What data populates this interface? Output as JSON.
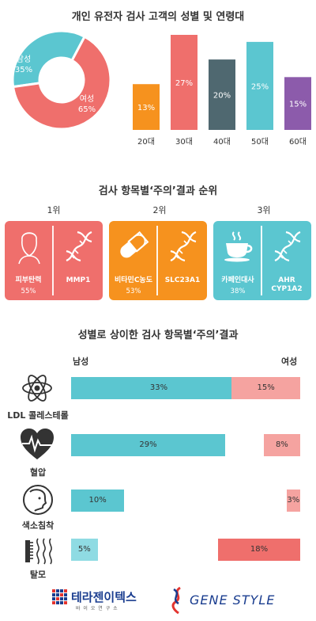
{
  "header": {
    "title": "개인 유전자 검사 고객의 성별 및 연령대"
  },
  "colors": {
    "male": "#5bc6d0",
    "female": "#ef6f6c",
    "orange": "#f6921e",
    "dark": "#4f6870",
    "purple": "#8c5bab",
    "male_light": "#8fdbe3",
    "female_light": "#f5a3a0",
    "logo_blue": "#1a3d8f",
    "logo_red": "#e3342f"
  },
  "chart_data": [
    {
      "type": "pie",
      "categories": [
        "남성",
        "여성"
      ],
      "values": [
        35,
        65
      ],
      "labels": [
        {
          "name": "남성",
          "pct": "35%"
        },
        {
          "name": "여성",
          "pct": "65%"
        }
      ]
    },
    {
      "type": "bar",
      "title": "개인 유전자 검사 고객의 성별 및 연령대",
      "categories": [
        "20대",
        "30대",
        "40대",
        "50대",
        "60대"
      ],
      "values": [
        13,
        27,
        20,
        25,
        15
      ],
      "value_labels": [
        "13%",
        "27%",
        "20%",
        "25%",
        "15%"
      ],
      "colors": [
        "#f6921e",
        "#ef6f6c",
        "#4f6870",
        "#5bc6d0",
        "#8c5bab"
      ],
      "ylim": [
        0,
        27
      ]
    },
    {
      "type": "bar",
      "title": "성별로 상이한 검사 항목별‘주의’결과",
      "orientation": "horizontal",
      "categories": [
        "LDL 콜레스테롤",
        "혈압",
        "색소침착",
        "탈모"
      ],
      "series": [
        {
          "name": "남성",
          "values": [
            33,
            29,
            10,
            5
          ],
          "labels": [
            "33%",
            "29%",
            "10%",
            "5%"
          ]
        },
        {
          "name": "여성",
          "values": [
            15,
            8,
            3,
            18
          ],
          "labels": [
            "15%",
            "8%",
            "3%",
            "18%"
          ]
        }
      ]
    }
  ],
  "ranking": {
    "title": "검사 항목별‘주의’결과 순위",
    "items": [
      {
        "rank": "1위",
        "icon": "face-icon",
        "left_label": "피부탄력",
        "left_pct": "55%",
        "right_label": "MMP1",
        "right_label2": "",
        "color": "#ef6f6c"
      },
      {
        "rank": "2위",
        "icon": "pill-icon",
        "left_label": "비타민C농도",
        "left_pct": "53%",
        "right_label": "SLC23A1",
        "right_label2": "",
        "color": "#f6921e"
      },
      {
        "rank": "3위",
        "icon": "coffee-cup-icon",
        "left_label": "카페인대사",
        "left_pct": "38%",
        "right_label": "AHR",
        "right_label2": "CYP1A2",
        "color": "#5bc6d0"
      }
    ]
  },
  "gender_section": {
    "title": "성별로 상이한 검사 항목별‘주의’결과",
    "male_header": "남성",
    "female_header": "여성"
  },
  "footer": {
    "logo1_main": "테라젠이텍스",
    "logo1_sub": "바 이 오 연 구 소",
    "logo2_text": "GENE STYLE"
  }
}
